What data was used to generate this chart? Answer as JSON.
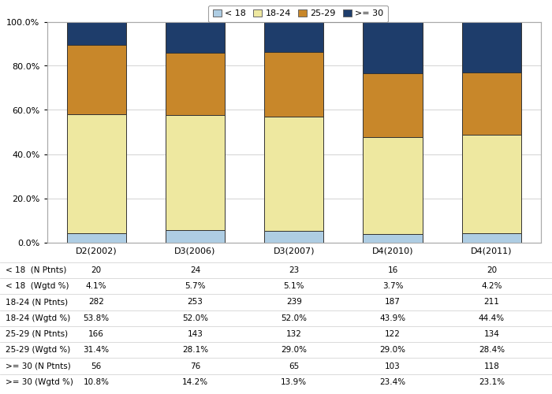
{
  "categories": [
    "D2(2002)",
    "D3(2006)",
    "D3(2007)",
    "D4(2010)",
    "D4(2011)"
  ],
  "series": {
    "lt18": [
      4.1,
      5.7,
      5.1,
      3.7,
      4.2
    ],
    "18_24": [
      53.8,
      52.0,
      52.0,
      43.9,
      44.4
    ],
    "25_29": [
      31.4,
      28.1,
      29.0,
      29.0,
      28.4
    ],
    "ge30": [
      10.8,
      14.2,
      13.9,
      23.4,
      23.1
    ]
  },
  "colors": {
    "lt18": "#aecde3",
    "18_24": "#eee8a0",
    "25_29": "#c8872a",
    "ge30": "#1e3d6b"
  },
  "legend_labels": [
    "< 18",
    "18-24",
    "25-29",
    ">= 30"
  ],
  "table_row_labels": [
    "< 18  (N Ptnts)",
    "< 18  (Wgtd %)",
    "18-24 (N Ptnts)",
    "18-24 (Wgtd %)",
    "25-29 (N Ptnts)",
    "25-29 (Wgtd %)",
    ">= 30 (N Ptnts)",
    ">= 30 (Wgtd %)"
  ],
  "table_values": [
    [
      "20",
      "24",
      "23",
      "16",
      "20"
    ],
    [
      "4.1%",
      "5.7%",
      "5.1%",
      "3.7%",
      "4.2%"
    ],
    [
      "282",
      "253",
      "239",
      "187",
      "211"
    ],
    [
      "53.8%",
      "52.0%",
      "52.0%",
      "43.9%",
      "44.4%"
    ],
    [
      "166",
      "143",
      "132",
      "122",
      "134"
    ],
    [
      "31.4%",
      "28.1%",
      "29.0%",
      "29.0%",
      "28.4%"
    ],
    [
      "56",
      "76",
      "65",
      "103",
      "118"
    ],
    [
      "10.8%",
      "14.2%",
      "13.9%",
      "23.4%",
      "23.1%"
    ]
  ],
  "ylim": [
    0,
    100
  ],
  "background_color": "#ffffff",
  "bar_width": 0.6
}
